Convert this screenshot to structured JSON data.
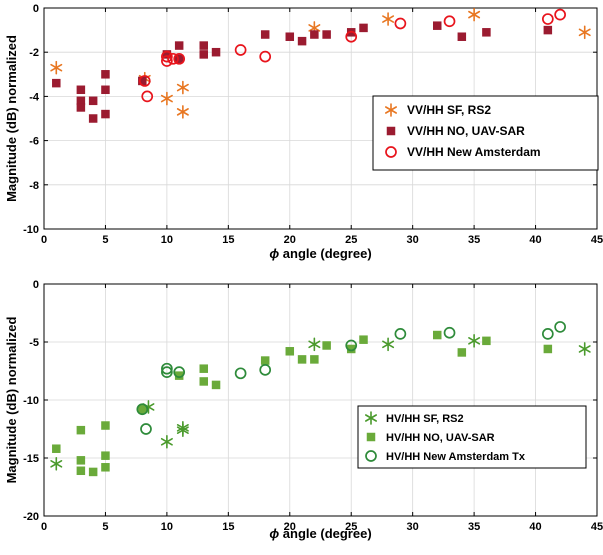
{
  "chart_data": [
    {
      "type": "scatter",
      "title": "",
      "xlabel": "angle (degree)",
      "xlabel_symbol": "ϕ",
      "ylabel": "Magnitude (dB) normalized",
      "xlim": [
        0,
        45
      ],
      "ylim": [
        -10,
        0
      ],
      "xticks": [
        "0",
        "5",
        "10",
        "15",
        "20",
        "25",
        "30",
        "35",
        "40",
        "45"
      ],
      "yticks": [
        "0",
        "-2",
        "-4",
        "-6",
        "-8",
        "-10"
      ],
      "xtick_values": [
        0,
        5,
        10,
        15,
        20,
        25,
        30,
        35,
        40,
        45
      ],
      "ytick_values": [
        0,
        -2,
        -4,
        -6,
        -8,
        -10
      ],
      "grid": true,
      "legend_position": "center-right",
      "series": [
        {
          "name": "VV/HH SF, RS2",
          "marker": "asterisk",
          "color": "#e87722",
          "points": [
            [
              1,
              -2.7
            ],
            [
              8.2,
              -3.2
            ],
            [
              10,
              -4.1
            ],
            [
              11.3,
              -3.6
            ],
            [
              11.3,
              -4.7
            ],
            [
              22,
              -0.9
            ],
            [
              28,
              -0.5
            ],
            [
              35,
              -0.3
            ],
            [
              44,
              -1.1
            ]
          ]
        },
        {
          "name": "VV/HH NO, UAV-SAR",
          "marker": "square",
          "color": "#9b1b30",
          "points": [
            [
              1,
              -3.4
            ],
            [
              3,
              -3.7
            ],
            [
              3,
              -4.2
            ],
            [
              3,
              -4.5
            ],
            [
              4,
              -4.2
            ],
            [
              4,
              -5.0
            ],
            [
              5,
              -3.0
            ],
            [
              5,
              -3.7
            ],
            [
              5,
              -4.8
            ],
            [
              8,
              -3.3
            ],
            [
              10,
              -2.1
            ],
            [
              11,
              -1.7
            ],
            [
              11,
              -2.3
            ],
            [
              13,
              -1.7
            ],
            [
              13,
              -2.1
            ],
            [
              14,
              -2.0
            ],
            [
              18,
              -1.2
            ],
            [
              20,
              -1.3
            ],
            [
              21,
              -1.5
            ],
            [
              22,
              -1.2
            ],
            [
              23,
              -1.2
            ],
            [
              25,
              -1.1
            ],
            [
              26,
              -0.9
            ],
            [
              32,
              -0.8
            ],
            [
              34,
              -1.3
            ],
            [
              36,
              -1.1
            ],
            [
              41,
              -1.0
            ]
          ]
        },
        {
          "name": "VV/HH New Amsterdam",
          "marker": "circle",
          "color": "#e8141c",
          "points": [
            [
              8.2,
              -3.3
            ],
            [
              8.4,
              -4.0
            ],
            [
              10,
              -2.2
            ],
            [
              10,
              -2.4
            ],
            [
              10.5,
              -2.3
            ],
            [
              11,
              -2.3
            ],
            [
              16,
              -1.9
            ],
            [
              18,
              -2.2
            ],
            [
              25,
              -1.3
            ],
            [
              29,
              -0.7
            ],
            [
              33,
              -0.6
            ],
            [
              41,
              -0.5
            ],
            [
              42,
              -0.3
            ]
          ]
        }
      ]
    },
    {
      "type": "scatter",
      "title": "",
      "xlabel": "angle (degree)",
      "xlabel_symbol": "ϕ",
      "ylabel": "Magnitude (dB) normalized",
      "xlim": [
        0,
        45
      ],
      "ylim": [
        -20,
        0
      ],
      "xticks": [
        "0",
        "5",
        "10",
        "15",
        "20",
        "25",
        "30",
        "35",
        "40",
        "45"
      ],
      "yticks": [
        "0",
        "-5",
        "-10",
        "-15",
        "-20"
      ],
      "xtick_values": [
        0,
        5,
        10,
        15,
        20,
        25,
        30,
        35,
        40,
        45
      ],
      "ytick_values": [
        0,
        -5,
        -10,
        -15,
        -20
      ],
      "grid": true,
      "legend_position": "center-right",
      "series": [
        {
          "name": "HV/HH SF, RS2",
          "marker": "asterisk",
          "color": "#4a9a2c",
          "points": [
            [
              1,
              -15.5
            ],
            [
              8.5,
              -10.6
            ],
            [
              10,
              -13.6
            ],
            [
              11.3,
              -12.4
            ],
            [
              11.3,
              -12.6
            ],
            [
              22,
              -5.2
            ],
            [
              28,
              -5.2
            ],
            [
              35,
              -4.9
            ],
            [
              44,
              -5.6
            ]
          ]
        },
        {
          "name": "HV/HH NO, UAV-SAR",
          "marker": "square",
          "color": "#6aaa3a",
          "points": [
            [
              1,
              -14.2
            ],
            [
              3,
              -12.6
            ],
            [
              3,
              -15.2
            ],
            [
              3,
              -16.1
            ],
            [
              4,
              -16.2
            ],
            [
              5,
              -12.2
            ],
            [
              5,
              -14.8
            ],
            [
              5,
              -15.8
            ],
            [
              8,
              -10.8
            ],
            [
              11,
              -7.9
            ],
            [
              13,
              -7.3
            ],
            [
              13,
              -8.4
            ],
            [
              14,
              -8.7
            ],
            [
              18,
              -6.6
            ],
            [
              20,
              -5.8
            ],
            [
              21,
              -6.5
            ],
            [
              22,
              -6.5
            ],
            [
              23,
              -5.3
            ],
            [
              25,
              -5.6
            ],
            [
              26,
              -4.8
            ],
            [
              32,
              -4.4
            ],
            [
              34,
              -5.9
            ],
            [
              36,
              -4.9
            ],
            [
              41,
              -5.6
            ]
          ]
        },
        {
          "name": "HV/HH New Amsterdam Tx",
          "marker": "circle",
          "color": "#2e8b3a",
          "points": [
            [
              8,
              -10.8
            ],
            [
              8.3,
              -12.5
            ],
            [
              10,
              -7.3
            ],
            [
              10,
              -7.6
            ],
            [
              11,
              -7.6
            ],
            [
              16,
              -7.7
            ],
            [
              18,
              -7.4
            ],
            [
              25,
              -5.3
            ],
            [
              29,
              -4.3
            ],
            [
              33,
              -4.2
            ],
            [
              41,
              -4.3
            ],
            [
              42,
              -3.7
            ]
          ]
        }
      ]
    }
  ]
}
